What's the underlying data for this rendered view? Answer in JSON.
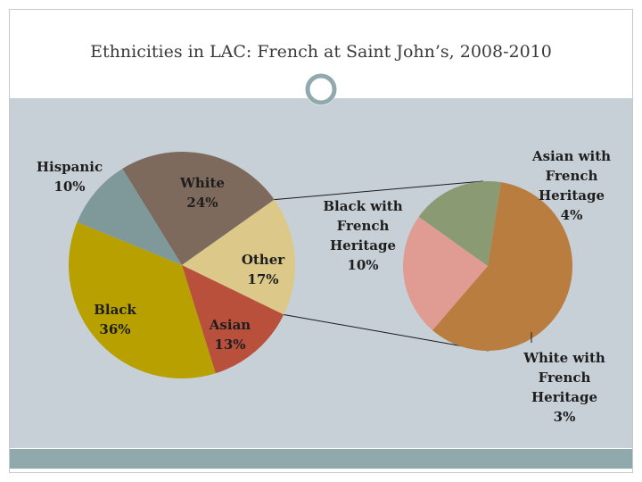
{
  "title": "Ethnicities in LAC: French at Saint John’s, 2008-2010",
  "chart_data": {
    "type": "pie",
    "subtype": "pie-of-pie",
    "main": {
      "slices": [
        {
          "name": "White",
          "value": 24,
          "label": "24%",
          "color": "#7d6a5d"
        },
        {
          "name": "Other",
          "value": 17,
          "label": "17%",
          "color": "#dcc98a"
        },
        {
          "name": "Asian",
          "value": 13,
          "label": "13%",
          "color": "#b9503c"
        },
        {
          "name": "Black",
          "value": 36,
          "label": "36%",
          "color": "#b7a000"
        },
        {
          "name": "Hispanic",
          "value": 10,
          "label": "10%",
          "color": "#7f999a"
        }
      ]
    },
    "breakout_of": "Other",
    "secondary": {
      "slices": [
        {
          "name": "Black with French Heritage",
          "value": 10,
          "label": "10%",
          "color": "#b97d3f"
        },
        {
          "name": "Asian with French Heritage",
          "value": 4,
          "label": "4%",
          "color": "#e09c92"
        },
        {
          "name": "White with French Heritage",
          "value": 3,
          "label": "3%",
          "color": "#8a9a72"
        }
      ]
    }
  }
}
